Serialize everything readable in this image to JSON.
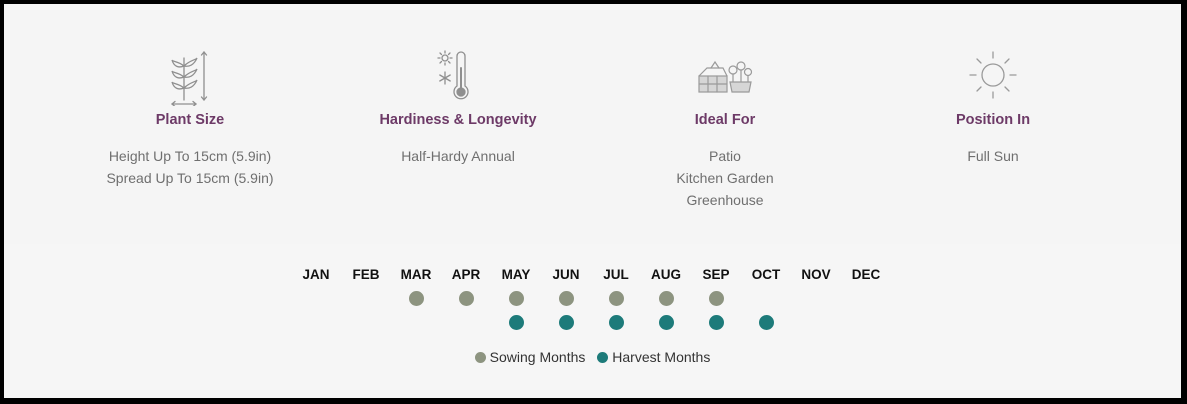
{
  "specs": [
    {
      "title": "Plant Size",
      "icon": "plant-size-icon",
      "lines": [
        "Height Up To 15cm (5.9in)",
        "Spread Up To 15cm (5.9in)"
      ]
    },
    {
      "title": "Hardiness & Longevity",
      "icon": "thermometer-icon",
      "lines": [
        "Half-Hardy Annual"
      ]
    },
    {
      "title": "Ideal For",
      "icon": "greenhouse-icon",
      "lines": [
        "Patio",
        "Kitchen Garden",
        "Greenhouse"
      ]
    },
    {
      "title": "Position In",
      "icon": "sun-icon",
      "lines": [
        "Full Sun"
      ]
    }
  ],
  "calendar": {
    "months": [
      "JAN",
      "FEB",
      "MAR",
      "APR",
      "MAY",
      "JUN",
      "JUL",
      "AUG",
      "SEP",
      "OCT",
      "NOV",
      "DEC"
    ],
    "sowing": [
      false,
      false,
      true,
      true,
      true,
      true,
      true,
      true,
      true,
      false,
      false,
      false
    ],
    "harvest": [
      false,
      false,
      false,
      false,
      true,
      true,
      true,
      true,
      true,
      true,
      false,
      false
    ],
    "legend": {
      "sowing_label": "Sowing Months",
      "harvest_label": "Harvest Months"
    }
  },
  "colors": {
    "title": "#6d3a67",
    "sowing": "#8d9480",
    "harvest": "#1d7b7a",
    "icon": "#9a9a9a"
  }
}
